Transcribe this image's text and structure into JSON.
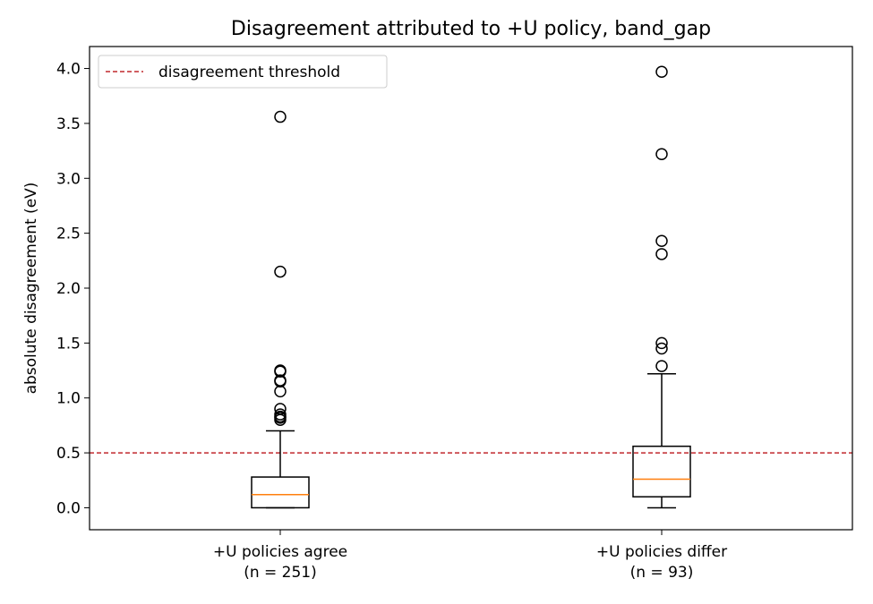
{
  "chart_data": {
    "type": "box",
    "title": "Disagreement attributed to +U policy, band_gap",
    "xlabel": "",
    "ylabel": "absolute disagreement (eV)",
    "ylim": [
      -0.2,
      4.2
    ],
    "yticks": [
      0.0,
      0.5,
      1.0,
      1.5,
      2.0,
      2.5,
      3.0,
      3.5,
      4.0
    ],
    "ytick_labels": [
      "0.0",
      "0.5",
      "1.0",
      "1.5",
      "2.0",
      "2.5",
      "3.0",
      "3.5",
      "4.0"
    ],
    "grid": false,
    "legend_position": "top-left",
    "threshold": {
      "label": "disagreement threshold",
      "value": 0.5,
      "color": "#c0282d",
      "style": "dashed"
    },
    "box_color": "#000000",
    "median_color": "#ff7f0e",
    "groups": [
      {
        "label_line1": "+U policies agree",
        "label_line2": "(n = 251)",
        "whisker_low": 0.0,
        "q1": 0.0,
        "median": 0.12,
        "q3": 0.28,
        "whisker_high": 0.7,
        "outliers": [
          3.56,
          2.15,
          1.25,
          1.24,
          1.16,
          1.15,
          1.06,
          0.9,
          0.85,
          0.83,
          0.82,
          0.8
        ]
      },
      {
        "label_line1": "+U policies differ",
        "label_line2": "(n = 93)",
        "whisker_low": 0.0,
        "q1": 0.1,
        "median": 0.26,
        "q3": 0.56,
        "whisker_high": 1.22,
        "outliers": [
          3.97,
          3.22,
          2.43,
          2.31,
          1.5,
          1.45,
          1.29
        ]
      }
    ]
  }
}
